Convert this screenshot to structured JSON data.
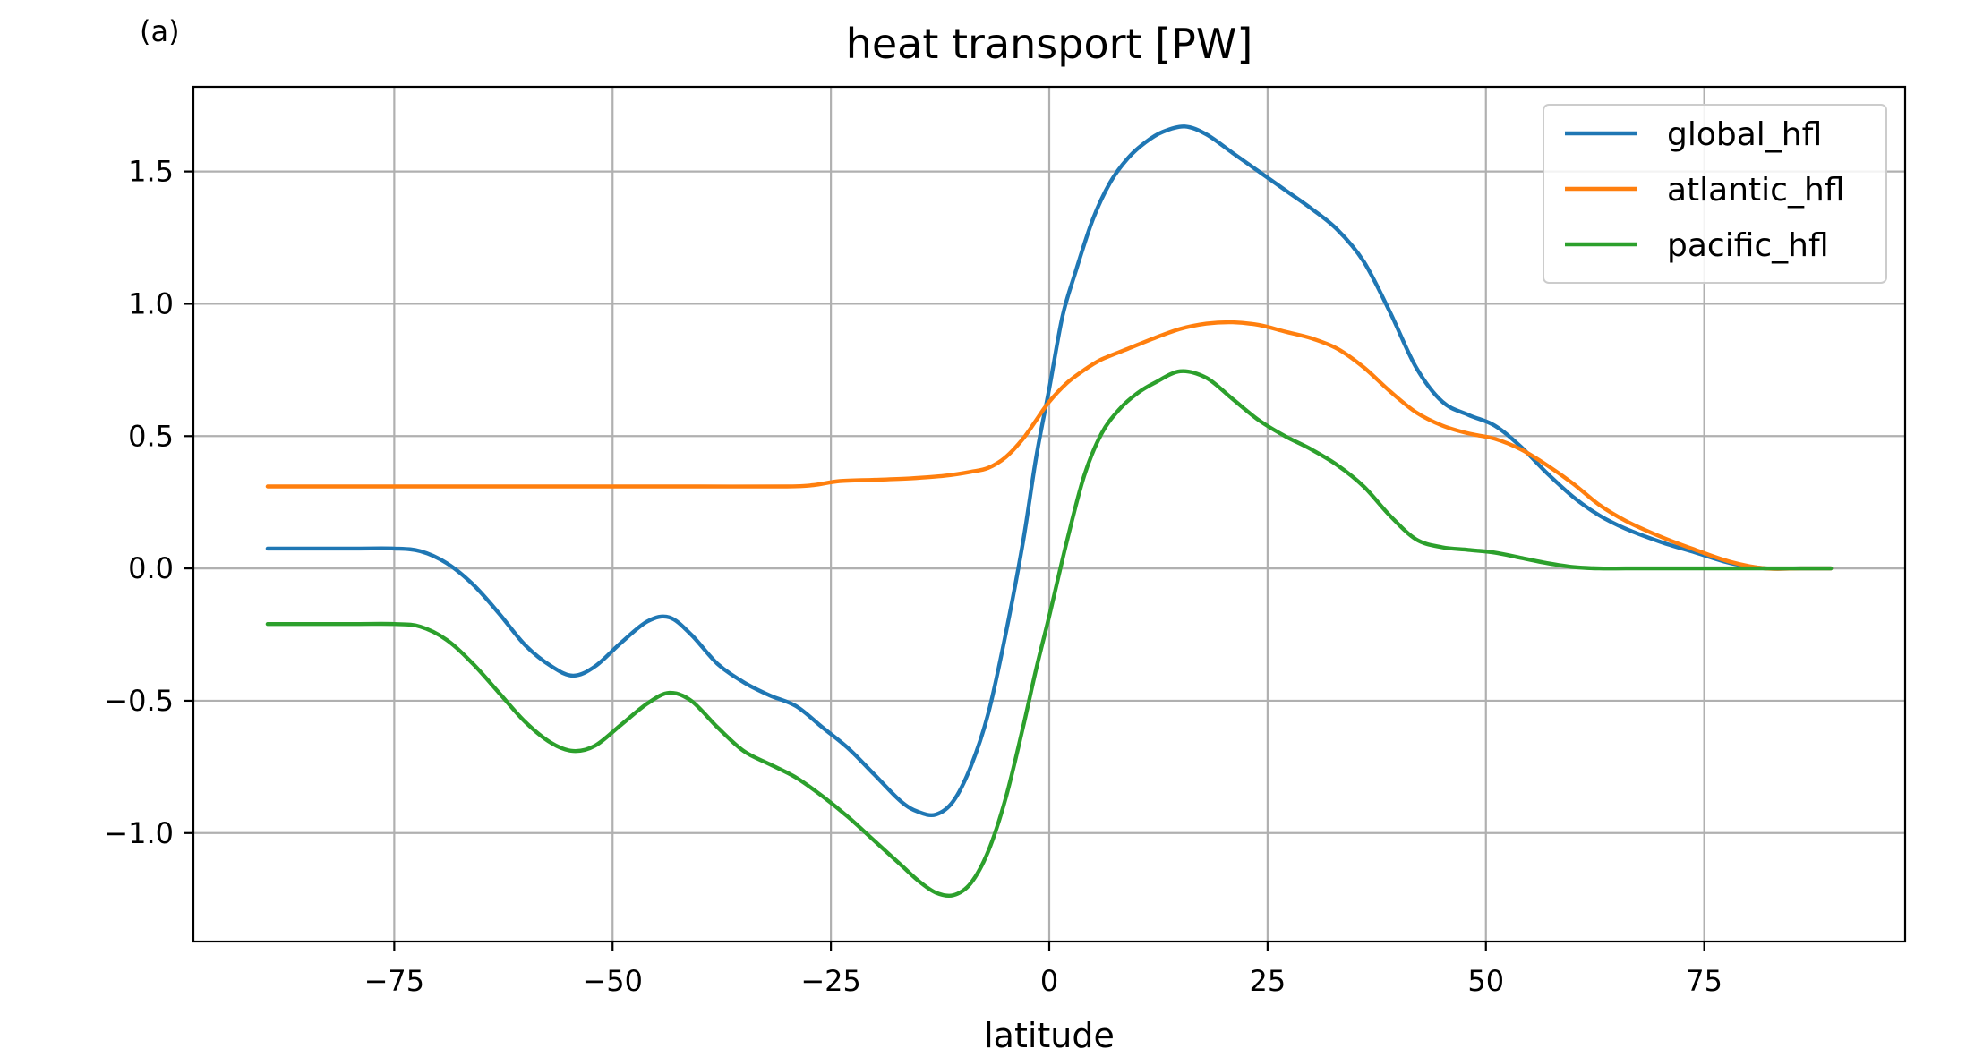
{
  "panel_label": "(a)",
  "chart_data": {
    "type": "line",
    "title": "heat transport [PW]",
    "xlabel": "latitude",
    "ylabel": "",
    "xlim": [
      -98,
      98
    ],
    "ylim": [
      -1.41,
      1.82
    ],
    "xticks": [
      -75,
      -50,
      -25,
      0,
      25,
      50,
      75
    ],
    "xtick_labels": [
      "−75",
      "−50",
      "−25",
      "0",
      "25",
      "50",
      "75"
    ],
    "yticks": [
      -1.0,
      -0.5,
      0.0,
      0.5,
      1.0,
      1.5
    ],
    "ytick_labels": [
      "−1.0",
      "−0.5",
      "0.0",
      "0.5",
      "1.0",
      "1.5"
    ],
    "grid": true,
    "legend_position": "upper right",
    "series": [
      {
        "name": "global_hfl",
        "color": "#1f77b4",
        "x": [
          -89.5,
          -80,
          -75,
          -72,
          -69,
          -66,
          -63,
          -60,
          -57,
          -54.5,
          -52,
          -49,
          -46,
          -43.5,
          -41,
          -38,
          -35,
          -32,
          -29,
          -26,
          -23,
          -20,
          -17,
          -15,
          -13,
          -11,
          -9,
          -7,
          -5,
          -3,
          -1.5,
          0,
          1.5,
          3,
          5,
          7,
          9,
          11,
          13,
          15.5,
          18,
          21,
          24,
          27,
          30,
          33,
          36,
          39,
          42,
          45,
          48,
          51,
          54,
          57,
          60,
          63,
          66,
          70,
          74,
          78,
          82,
          86,
          89.5
        ],
        "y": [
          0.075,
          0.075,
          0.075,
          0.065,
          0.02,
          -0.06,
          -0.17,
          -0.29,
          -0.37,
          -0.405,
          -0.37,
          -0.28,
          -0.2,
          -0.185,
          -0.25,
          -0.36,
          -0.43,
          -0.48,
          -0.52,
          -0.6,
          -0.68,
          -0.78,
          -0.88,
          -0.92,
          -0.93,
          -0.88,
          -0.75,
          -0.55,
          -0.25,
          0.1,
          0.42,
          0.68,
          0.95,
          1.12,
          1.32,
          1.46,
          1.55,
          1.61,
          1.65,
          1.67,
          1.64,
          1.57,
          1.5,
          1.43,
          1.36,
          1.28,
          1.16,
          0.97,
          0.76,
          0.63,
          0.58,
          0.54,
          0.46,
          0.36,
          0.27,
          0.2,
          0.15,
          0.1,
          0.06,
          0.02,
          0.0,
          0.0,
          0.0
        ]
      },
      {
        "name": "atlantic_hfl",
        "color": "#ff7f0e",
        "x": [
          -89.5,
          -80,
          -70,
          -60,
          -50,
          -40,
          -30,
          -27,
          -24,
          -20,
          -16,
          -12,
          -9,
          -7,
          -5,
          -3,
          -1.5,
          0,
          2,
          4,
          6,
          9,
          12,
          15,
          18,
          21,
          24,
          27,
          30,
          33,
          36,
          39,
          42,
          45,
          48,
          51,
          54,
          57,
          60,
          63,
          66,
          70,
          74,
          78,
          82,
          86,
          89.5
        ],
        "y": [
          0.31,
          0.31,
          0.31,
          0.31,
          0.31,
          0.31,
          0.31,
          0.315,
          0.33,
          0.335,
          0.34,
          0.35,
          0.365,
          0.38,
          0.42,
          0.49,
          0.56,
          0.63,
          0.7,
          0.75,
          0.79,
          0.83,
          0.87,
          0.905,
          0.925,
          0.93,
          0.92,
          0.895,
          0.87,
          0.83,
          0.76,
          0.67,
          0.59,
          0.54,
          0.51,
          0.49,
          0.45,
          0.39,
          0.32,
          0.24,
          0.18,
          0.12,
          0.07,
          0.025,
          0.0,
          0.0,
          0.0
        ]
      },
      {
        "name": "pacific_hfl",
        "color": "#2ca02c",
        "x": [
          -89.5,
          -80,
          -75,
          -72,
          -69,
          -66,
          -63,
          -60,
          -57,
          -54.5,
          -52,
          -49,
          -46,
          -43.5,
          -41,
          -38,
          -35,
          -32,
          -29,
          -26,
          -23,
          -20,
          -17,
          -15,
          -13,
          -11,
          -9,
          -7,
          -5,
          -3,
          -1.5,
          0,
          2,
          4,
          6,
          8,
          10,
          12,
          15,
          18,
          21,
          24,
          27,
          30,
          33,
          36,
          39,
          42,
          45,
          48,
          51,
          54,
          57,
          60,
          63,
          66,
          70,
          75,
          80,
          85,
          89.5
        ],
        "y": [
          -0.21,
          -0.21,
          -0.21,
          -0.22,
          -0.27,
          -0.36,
          -0.47,
          -0.58,
          -0.66,
          -0.69,
          -0.67,
          -0.59,
          -0.51,
          -0.47,
          -0.5,
          -0.6,
          -0.69,
          -0.74,
          -0.79,
          -0.86,
          -0.94,
          -1.03,
          -1.12,
          -1.18,
          -1.225,
          -1.235,
          -1.19,
          -1.07,
          -0.87,
          -0.6,
          -0.38,
          -0.18,
          0.1,
          0.35,
          0.51,
          0.6,
          0.66,
          0.7,
          0.745,
          0.72,
          0.64,
          0.56,
          0.5,
          0.45,
          0.39,
          0.31,
          0.2,
          0.11,
          0.08,
          0.07,
          0.06,
          0.04,
          0.02,
          0.005,
          0.0,
          0.0,
          0.0,
          0.0,
          0.0,
          0.0,
          0.0
        ]
      }
    ]
  }
}
